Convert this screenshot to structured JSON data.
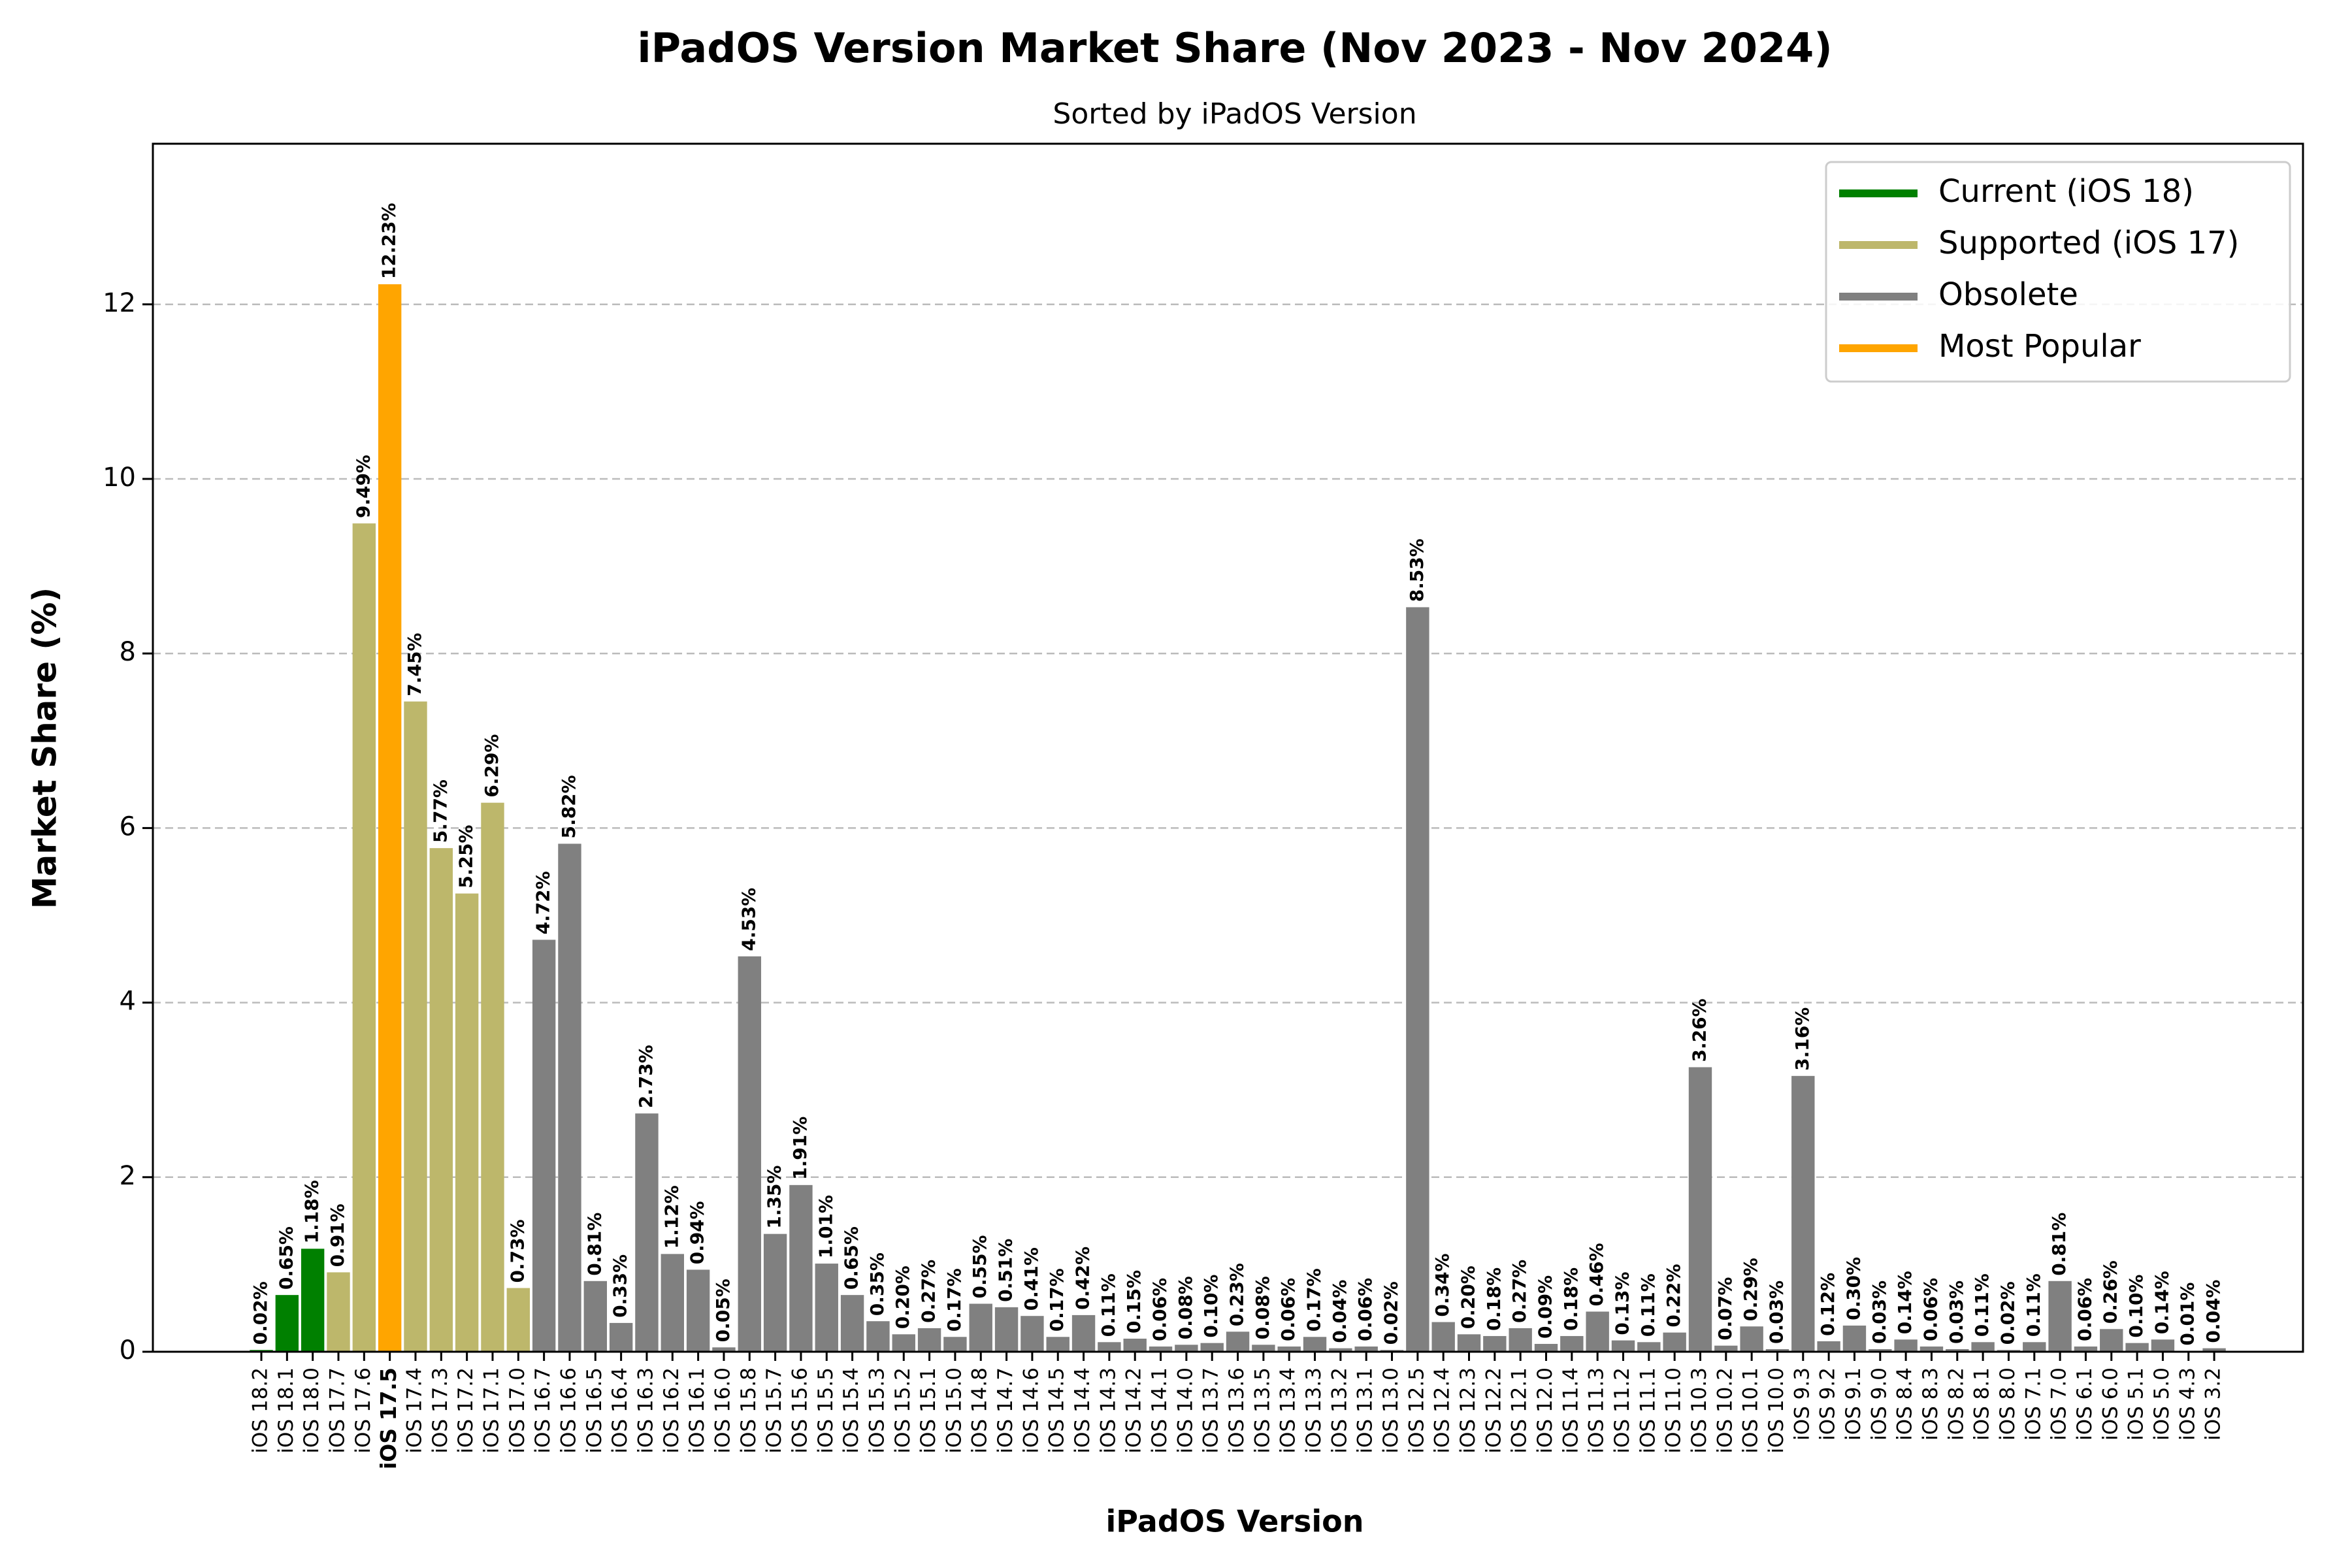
{
  "chart_data": {
    "type": "bar",
    "title": "iPadOS Version Market Share (Nov 2023 - Nov 2024)",
    "subtitle": "Sorted by iPadOS Version",
    "x_label": "iPadOS Version",
    "y_label": "Market Share (%)",
    "categories": [
      "iOS 18.2",
      "iOS 18.1",
      "iOS 18.0",
      "iOS 17.7",
      "iOS 17.6",
      "iOS 17.5",
      "iOS 17.4",
      "iOS 17.3",
      "iOS 17.2",
      "iOS 17.1",
      "iOS 17.0",
      "iOS 16.7",
      "iOS 16.6",
      "iOS 16.5",
      "iOS 16.4",
      "iOS 16.3",
      "iOS 16.2",
      "iOS 16.1",
      "iOS 16.0",
      "iOS 15.8",
      "iOS 15.7",
      "iOS 15.6",
      "iOS 15.5",
      "iOS 15.4",
      "iOS 15.3",
      "iOS 15.2",
      "iOS 15.1",
      "iOS 15.0",
      "iOS 14.8",
      "iOS 14.7",
      "iOS 14.6",
      "iOS 14.5",
      "iOS 14.4",
      "iOS 14.3",
      "iOS 14.2",
      "iOS 14.1",
      "iOS 14.0",
      "iOS 13.7",
      "iOS 13.6",
      "iOS 13.5",
      "iOS 13.4",
      "iOS 13.3",
      "iOS 13.2",
      "iOS 13.1",
      "iOS 13.0",
      "iOS 12.5",
      "iOS 12.4",
      "iOS 12.3",
      "iOS 12.2",
      "iOS 12.1",
      "iOS 12.0",
      "iOS 11.4",
      "iOS 11.3",
      "iOS 11.2",
      "iOS 11.1",
      "iOS 11.0",
      "iOS 10.3",
      "iOS 10.2",
      "iOS 10.1",
      "iOS 10.0",
      "iOS 9.3",
      "iOS 9.2",
      "iOS 9.1",
      "iOS 9.0",
      "iOS 8.4",
      "iOS 8.3",
      "iOS 8.2",
      "iOS 8.1",
      "iOS 8.0",
      "iOS 7.1",
      "iOS 7.0",
      "iOS 6.1",
      "iOS 6.0",
      "iOS 5.1",
      "iOS 5.0",
      "iOS 4.3",
      "iOS 3.2"
    ],
    "values": [
      0.02,
      0.65,
      1.18,
      0.91,
      9.49,
      12.23,
      7.45,
      5.77,
      5.25,
      6.29,
      0.73,
      4.72,
      5.82,
      0.81,
      0.33,
      2.73,
      1.12,
      0.94,
      0.05,
      4.53,
      1.35,
      1.91,
      1.01,
      0.65,
      0.35,
      0.2,
      0.27,
      0.17,
      0.55,
      0.51,
      0.41,
      0.17,
      0.42,
      0.11,
      0.15,
      0.06,
      0.08,
      0.1,
      0.23,
      0.08,
      0.06,
      0.17,
      0.04,
      0.06,
      0.02,
      8.53,
      0.34,
      0.2,
      0.18,
      0.27,
      0.09,
      0.18,
      0.46,
      0.13,
      0.11,
      0.22,
      3.26,
      0.07,
      0.29,
      0.03,
      3.16,
      0.12,
      0.3,
      0.03,
      0.14,
      0.06,
      0.03,
      0.11,
      0.02,
      0.11,
      0.81,
      0.06,
      0.26,
      0.1,
      0.14,
      0.01,
      0.04
    ],
    "value_labels": [
      "0.02%",
      "0.65%",
      "1.18%",
      "0.91%",
      "9.49%",
      "12.23%",
      "7.45%",
      "5.77%",
      "5.25%",
      "6.29%",
      "0.73%",
      "4.72%",
      "5.82%",
      "0.81%",
      "0.33%",
      "2.73%",
      "1.12%",
      "0.94%",
      "0.05%",
      "4.53%",
      "1.35%",
      "1.91%",
      "1.01%",
      "0.65%",
      "0.35%",
      "0.20%",
      "0.27%",
      "0.17%",
      "0.55%",
      "0.51%",
      "0.41%",
      "0.17%",
      "0.42%",
      "0.11%",
      "0.15%",
      "0.06%",
      "0.08%",
      "0.10%",
      "0.23%",
      "0.08%",
      "0.06%",
      "0.17%",
      "0.04%",
      "0.06%",
      "0.02%",
      "8.53%",
      "0.34%",
      "0.20%",
      "0.18%",
      "0.27%",
      "0.09%",
      "0.18%",
      "0.46%",
      "0.13%",
      "0.11%",
      "0.22%",
      "3.26%",
      "0.07%",
      "0.29%",
      "0.03%",
      "3.16%",
      "0.12%",
      "0.30%",
      "0.03%",
      "0.14%",
      "0.06%",
      "0.03%",
      "0.11%",
      "0.02%",
      "0.11%",
      "0.81%",
      "0.06%",
      "0.26%",
      "0.10%",
      "0.14%",
      "0.01%",
      "0.04%"
    ],
    "groups": [
      0,
      0,
      0,
      1,
      1,
      3,
      1,
      1,
      1,
      1,
      1,
      2,
      2,
      2,
      2,
      2,
      2,
      2,
      2,
      2,
      2,
      2,
      2,
      2,
      2,
      2,
      2,
      2,
      2,
      2,
      2,
      2,
      2,
      2,
      2,
      2,
      2,
      2,
      2,
      2,
      2,
      2,
      2,
      2,
      2,
      2,
      2,
      2,
      2,
      2,
      2,
      2,
      2,
      2,
      2,
      2,
      2,
      2,
      2,
      2,
      2,
      2,
      2,
      2,
      2,
      2,
      2,
      2,
      2,
      2,
      2,
      2,
      2,
      2,
      2,
      2,
      2
    ],
    "legend": [
      {
        "name": "Current (iOS 18)",
        "color": "#008000"
      },
      {
        "name": "Supported (iOS 17)",
        "color": "#bdb76b"
      },
      {
        "name": "Obsolete",
        "color": "#808080"
      },
      {
        "name": "Most Popular",
        "color": "#ffa500"
      }
    ],
    "legend_position": "upper right",
    "highlight": {
      "index": 5,
      "color": "#008000"
    },
    "ylim": [
      0,
      13.84
    ],
    "yticks": [
      0,
      2,
      4,
      6,
      8,
      10,
      12
    ],
    "grid": true
  }
}
